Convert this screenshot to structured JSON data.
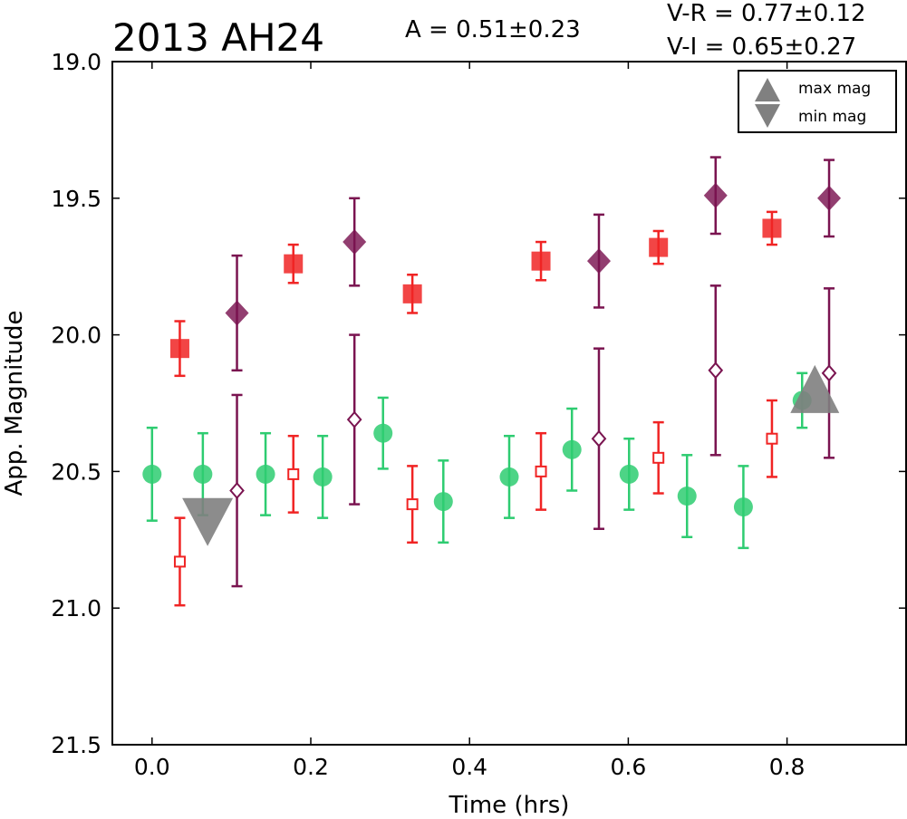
{
  "chart_data": {
    "type": "scatter",
    "title": "2013 AH24",
    "annotations": {
      "amplitude": "A  = 0.51±0.23",
      "v_r": "V-R = 0.77±0.12",
      "v_i": "V-I  = 0.65±0.27"
    },
    "xlabel": "Time (hrs)",
    "ylabel": "App. Magnitude",
    "xlim": [
      -0.05,
      0.95
    ],
    "ylim": [
      21.5,
      19.0
    ],
    "y_inverted": true,
    "x_ticks": [
      "0.0",
      "0.2",
      "0.4",
      "0.6",
      "0.8"
    ],
    "y_ticks": [
      "19.0",
      "19.5",
      "20.0",
      "20.5",
      "21.0",
      "21.5"
    ],
    "grid": false,
    "legend": {
      "placement": "top-right",
      "entries": [
        "max mag",
        "min mag"
      ]
    },
    "series": [
      {
        "marker": "circle",
        "color": "#2ecc71",
        "points": [
          {
            "x": 0.0,
            "y": 20.51,
            "err": 0.17
          },
          {
            "x": 0.064,
            "y": 20.51,
            "err": 0.15
          },
          {
            "x": 0.143,
            "y": 20.51,
            "err": 0.15
          },
          {
            "x": 0.215,
            "y": 20.52,
            "err": 0.15
          },
          {
            "x": 0.291,
            "y": 20.36,
            "err": 0.13
          },
          {
            "x": 0.367,
            "y": 20.61,
            "err": 0.15
          },
          {
            "x": 0.45,
            "y": 20.52,
            "err": 0.15
          },
          {
            "x": 0.529,
            "y": 20.42,
            "err": 0.15
          },
          {
            "x": 0.601,
            "y": 20.51,
            "err": 0.13
          },
          {
            "x": 0.674,
            "y": 20.59,
            "err": 0.15
          },
          {
            "x": 0.745,
            "y": 20.63,
            "err": 0.15
          },
          {
            "x": 0.819,
            "y": 20.24,
            "err": 0.1
          }
        ]
      },
      {
        "marker": "square",
        "color": "#f02424",
        "points": [
          {
            "x": 0.035,
            "y": 20.05,
            "err": 0.1
          },
          {
            "x": 0.178,
            "y": 19.74,
            "err": 0.07
          },
          {
            "x": 0.328,
            "y": 19.85,
            "err": 0.07
          },
          {
            "x": 0.49,
            "y": 19.73,
            "err": 0.07
          },
          {
            "x": 0.638,
            "y": 19.68,
            "err": 0.06
          },
          {
            "x": 0.781,
            "y": 19.61,
            "err": 0.06
          }
        ]
      },
      {
        "marker": "square-open",
        "color": "#f02424",
        "points": [
          {
            "x": 0.035,
            "y": 20.83,
            "err": 0.16
          },
          {
            "x": 0.178,
            "y": 20.51,
            "err": 0.14
          },
          {
            "x": 0.328,
            "y": 20.62,
            "err": 0.14
          },
          {
            "x": 0.49,
            "y": 20.5,
            "err": 0.14
          },
          {
            "x": 0.638,
            "y": 20.45,
            "err": 0.13
          },
          {
            "x": 0.781,
            "y": 20.38,
            "err": 0.14
          }
        ]
      },
      {
        "marker": "diamond",
        "color": "#7a1450",
        "points": [
          {
            "x": 0.107,
            "y": 19.92,
            "err": 0.21
          },
          {
            "x": 0.255,
            "y": 19.66,
            "err": 0.16
          },
          {
            "x": 0.563,
            "y": 19.73,
            "err": 0.17
          },
          {
            "x": 0.71,
            "y": 19.49,
            "err": 0.14
          },
          {
            "x": 0.853,
            "y": 19.5,
            "err": 0.14
          }
        ]
      },
      {
        "marker": "diamond-open",
        "color": "#7a1450",
        "points": [
          {
            "x": 0.107,
            "y": 20.57,
            "err": 0.35
          },
          {
            "x": 0.255,
            "y": 20.31,
            "err": 0.31
          },
          {
            "x": 0.563,
            "y": 20.38,
            "err": 0.33
          },
          {
            "x": 0.71,
            "y": 20.13,
            "err": 0.31
          },
          {
            "x": 0.853,
            "y": 20.14,
            "err": 0.31
          }
        ]
      },
      {
        "marker": "triangle-up",
        "color": "#808080",
        "label": "max mag",
        "points": [
          {
            "x": 0.835,
            "y": 20.21
          }
        ]
      },
      {
        "marker": "triangle-down",
        "color": "#808080",
        "label": "min mag",
        "points": [
          {
            "x": 0.07,
            "y": 20.68
          }
        ]
      }
    ]
  }
}
